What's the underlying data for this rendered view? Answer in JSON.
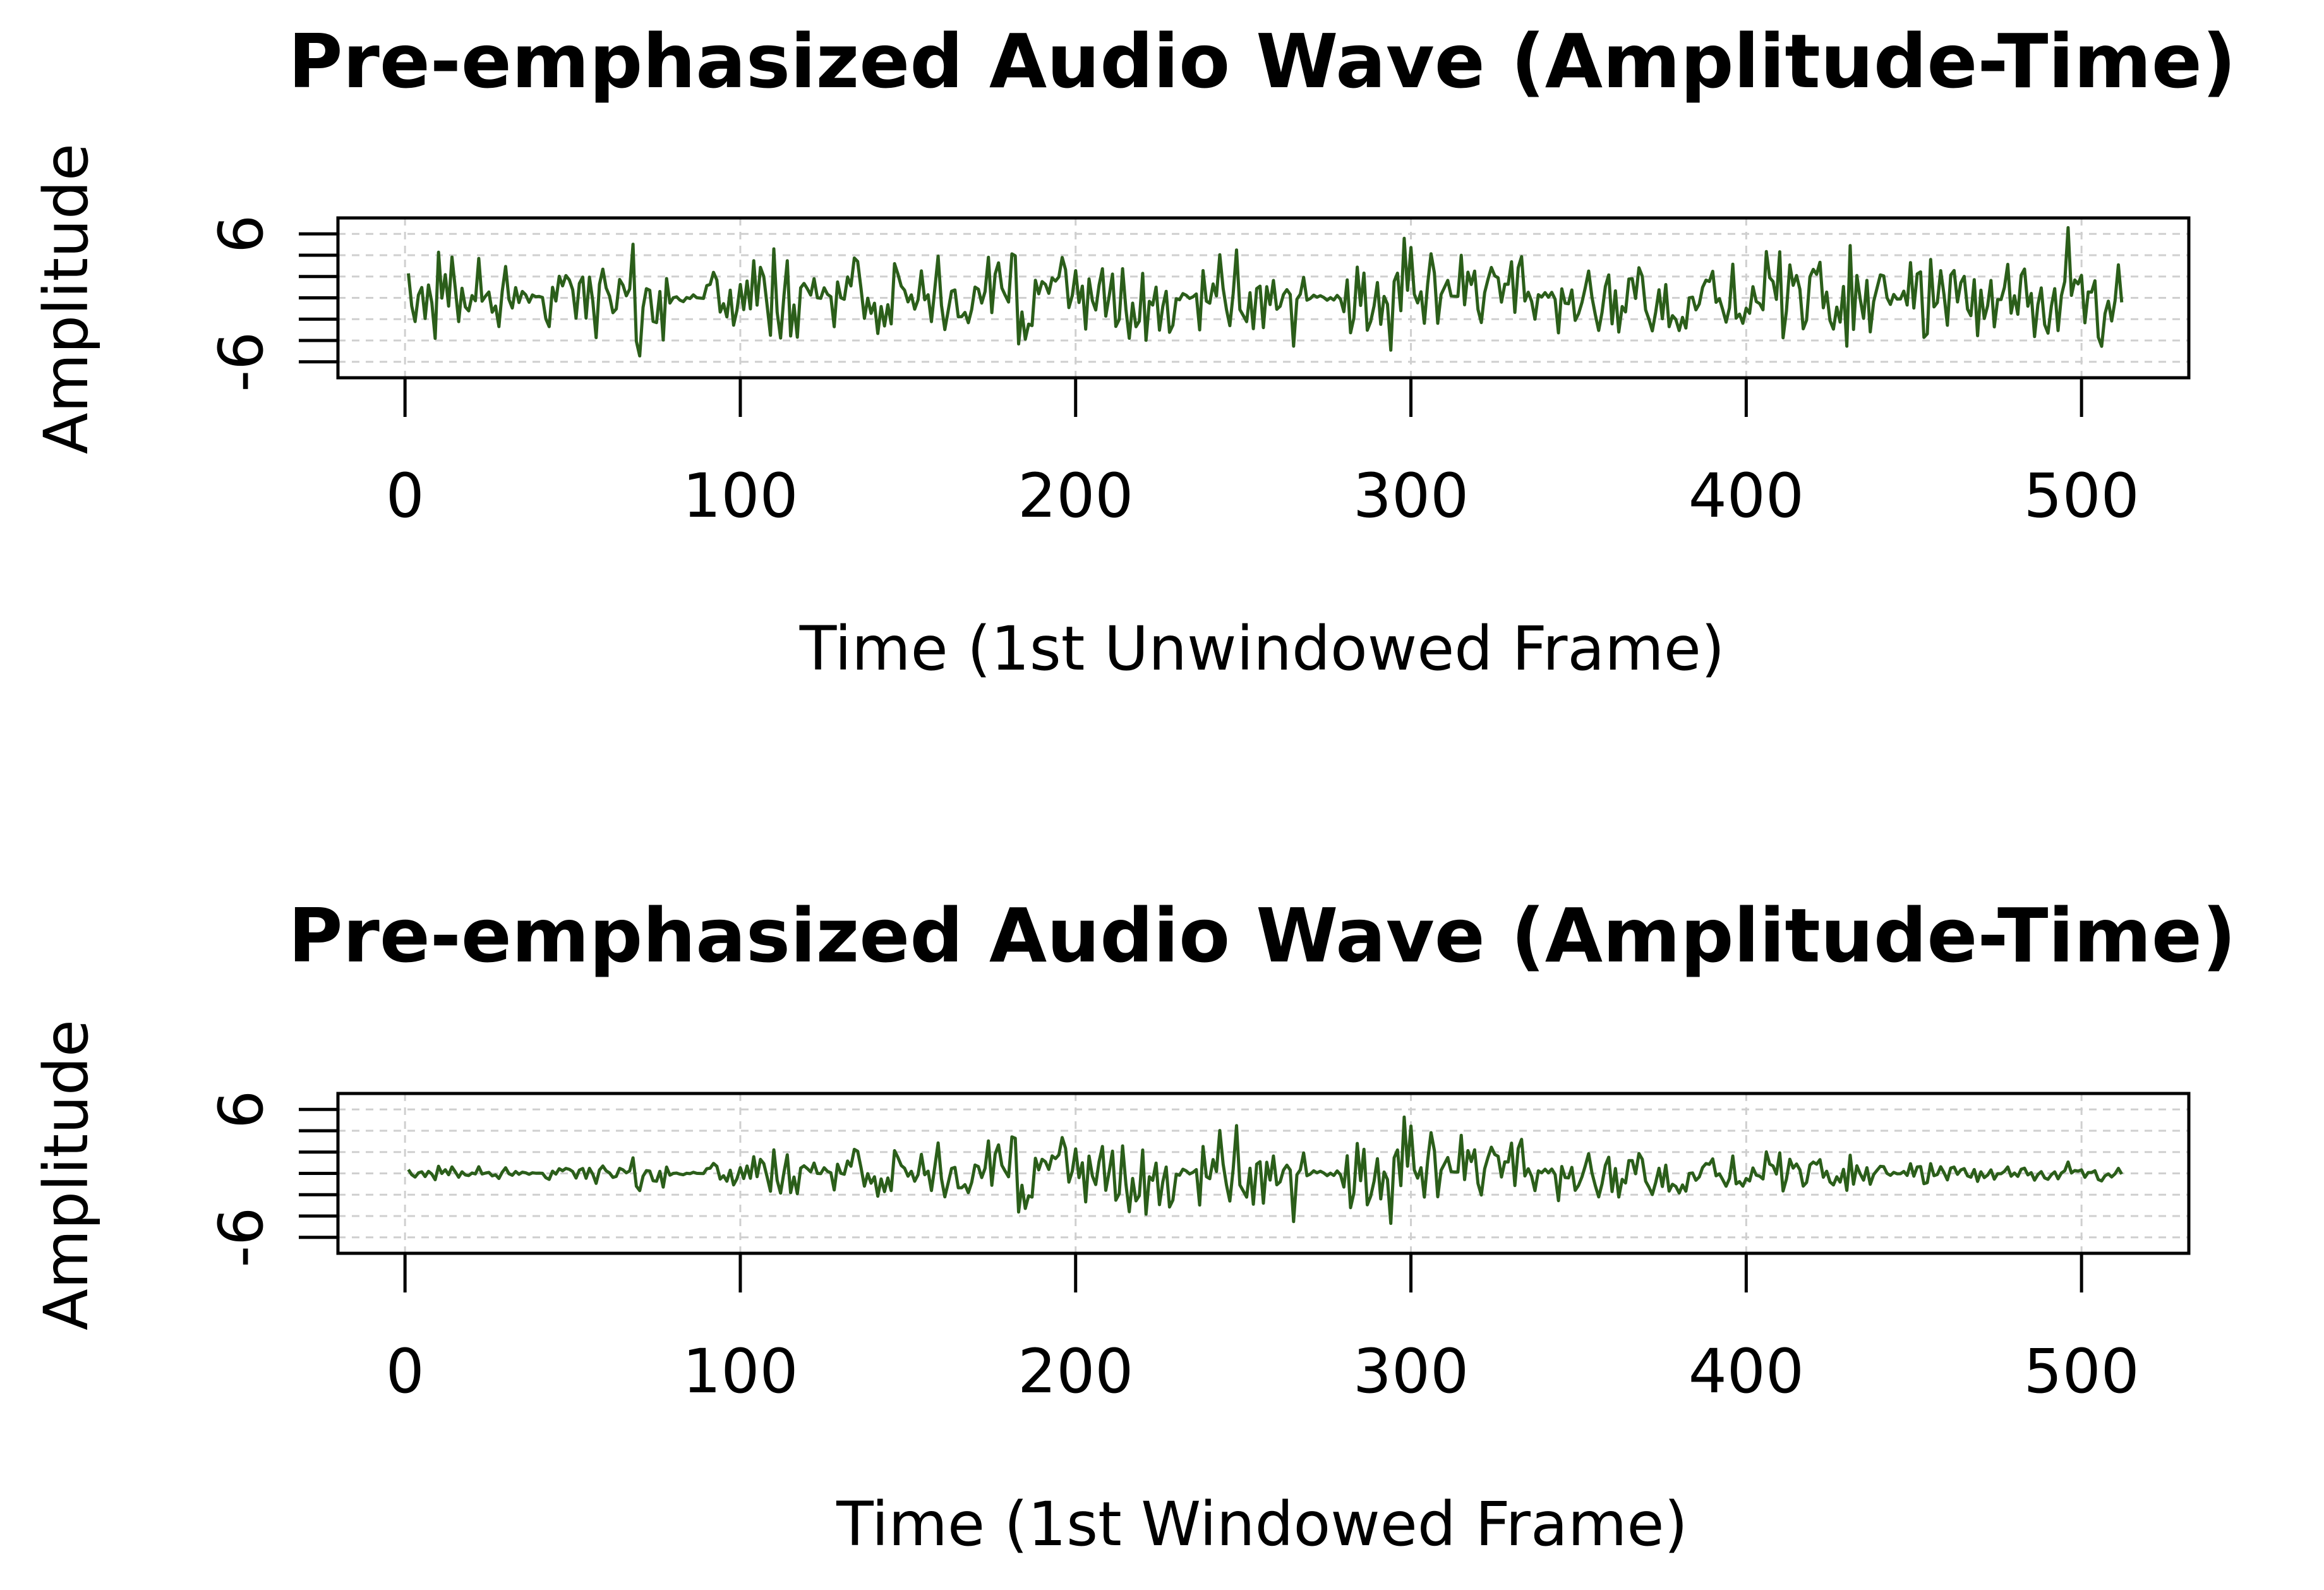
{
  "chart_data": [
    {
      "type": "line",
      "title": "Pre-emphasized Audio Wave (Amplitude-Time)",
      "xlabel": "Time (1st Unwindowed Frame)",
      "ylabel": "Amplitude",
      "xlim": [
        -20,
        532
      ],
      "ylim": [
        -7.5,
        7.5
      ],
      "x_ticks": [
        0,
        100,
        200,
        300,
        400,
        500
      ],
      "y_ticks": [
        -6,
        -4,
        -2,
        0,
        2,
        4,
        6
      ],
      "y_tick_labels": [
        "-6",
        "",
        "",
        "",
        "",
        "",
        "6"
      ],
      "grid": true,
      "line_color": "#2b5e1a",
      "envelope": "uniform",
      "series": [
        {
          "name": "",
          "x_start": 1,
          "x_end": 512,
          "n_points": 512,
          "amplitude_max": 6.6,
          "amplitude_min": -7.2
        }
      ]
    },
    {
      "type": "line",
      "title": "Pre-emphasized Audio Wave (Amplitude-Time)",
      "xlabel": "Time (1st Windowed Frame)",
      "ylabel": "Amplitude",
      "xlim": [
        -20,
        532
      ],
      "ylim": [
        -7.5,
        7.5
      ],
      "x_ticks": [
        0,
        100,
        200,
        300,
        400,
        500
      ],
      "y_ticks": [
        -6,
        -4,
        -2,
        0,
        2,
        4,
        6
      ],
      "y_tick_labels": [
        "-6",
        "",
        "",
        "",
        "",
        "",
        "6"
      ],
      "grid": true,
      "line_color": "#2b5e1a",
      "envelope": "hamming",
      "series": [
        {
          "name": "",
          "x_start": 1,
          "x_end": 512,
          "n_points": 512,
          "amplitude_max": 6.5,
          "amplitude_min": -7.5
        }
      ]
    }
  ]
}
